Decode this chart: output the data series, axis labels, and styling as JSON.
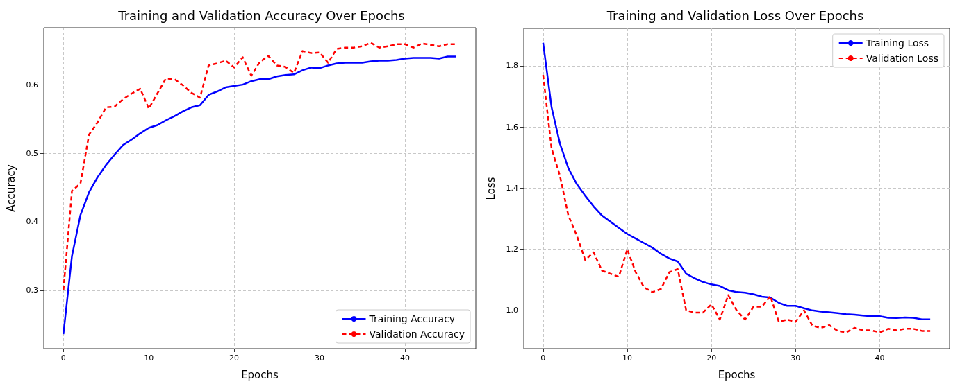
{
  "chart_data": [
    {
      "type": "line",
      "title": "Training and Validation Accuracy Over Epochs",
      "xlabel": "Epochs",
      "ylabel": "Accuracy",
      "x": [
        0,
        1,
        2,
        3,
        4,
        5,
        6,
        7,
        8,
        9,
        10,
        11,
        12,
        13,
        14,
        15,
        16,
        17,
        18,
        19,
        20,
        21,
        22,
        23,
        24,
        25,
        26,
        27,
        28,
        29,
        30,
        31,
        32,
        33,
        34,
        35,
        36,
        37,
        38,
        39,
        40,
        41,
        42,
        43,
        44,
        45,
        46
      ],
      "series": [
        {
          "name": "Training Accuracy",
          "color": "#0000ff",
          "line_style": "solid",
          "values": [
            0.236,
            0.35,
            0.41,
            0.443,
            0.465,
            0.483,
            0.498,
            0.512,
            0.52,
            0.529,
            0.537,
            0.541,
            0.548,
            0.554,
            0.561,
            0.567,
            0.57,
            0.585,
            0.59,
            0.596,
            0.598,
            0.6,
            0.605,
            0.608,
            0.608,
            0.612,
            0.614,
            0.615,
            0.621,
            0.625,
            0.624,
            0.628,
            0.631,
            0.632,
            0.632,
            0.632,
            0.634,
            0.635,
            0.635,
            0.636,
            0.638,
            0.639,
            0.639,
            0.639,
            0.638,
            0.641,
            0.641
          ]
        },
        {
          "name": "Validation Accuracy",
          "color": "#ff0000",
          "line_style": "dashed",
          "values": [
            0.3,
            0.445,
            0.456,
            0.527,
            0.545,
            0.567,
            0.568,
            0.579,
            0.587,
            0.594,
            0.565,
            0.587,
            0.609,
            0.608,
            0.599,
            0.588,
            0.581,
            0.628,
            0.631,
            0.635,
            0.625,
            0.64,
            0.613,
            0.633,
            0.642,
            0.628,
            0.626,
            0.617,
            0.649,
            0.646,
            0.647,
            0.632,
            0.652,
            0.654,
            0.654,
            0.656,
            0.661,
            0.654,
            0.656,
            0.659,
            0.659,
            0.654,
            0.66,
            0.658,
            0.656,
            0.659,
            0.659
          ]
        }
      ],
      "xlim": [
        -2.3,
        48.3
      ],
      "xticks": [
        0,
        10,
        20,
        30,
        40
      ],
      "ylim": [
        0.215,
        0.683
      ],
      "yticks": [
        0.3,
        0.4,
        0.5,
        0.6
      ],
      "grid": true,
      "legend": "bottom right"
    },
    {
      "type": "line",
      "title": "Training and Validation Loss Over Epochs",
      "xlabel": "Epochs",
      "ylabel": "Loss",
      "x": [
        0,
        1,
        2,
        3,
        4,
        5,
        6,
        7,
        8,
        9,
        10,
        11,
        12,
        13,
        14,
        15,
        16,
        17,
        18,
        19,
        20,
        21,
        22,
        23,
        24,
        25,
        26,
        27,
        28,
        29,
        30,
        31,
        32,
        33,
        34,
        35,
        36,
        37,
        38,
        39,
        40,
        41,
        42,
        43,
        44,
        45,
        46
      ],
      "series": [
        {
          "name": "Training Loss",
          "color": "#0000ff",
          "line_style": "solid",
          "values": [
            1.875,
            1.665,
            1.545,
            1.465,
            1.413,
            1.375,
            1.34,
            1.31,
            1.29,
            1.27,
            1.25,
            1.235,
            1.22,
            1.205,
            1.185,
            1.17,
            1.16,
            1.12,
            1.105,
            1.093,
            1.085,
            1.08,
            1.066,
            1.06,
            1.058,
            1.053,
            1.045,
            1.042,
            1.025,
            1.015,
            1.015,
            1.007,
            1.0,
            0.996,
            0.994,
            0.991,
            0.988,
            0.986,
            0.983,
            0.981,
            0.981,
            0.976,
            0.975,
            0.977,
            0.976,
            0.971,
            0.971
          ]
        },
        {
          "name": "Validation Loss",
          "color": "#ff0000",
          "line_style": "dashed",
          "values": [
            1.77,
            1.53,
            1.44,
            1.31,
            1.245,
            1.165,
            1.19,
            1.13,
            1.12,
            1.11,
            1.2,
            1.125,
            1.075,
            1.06,
            1.07,
            1.125,
            1.135,
            1.0,
            0.993,
            0.993,
            1.02,
            0.97,
            1.05,
            1.0,
            0.97,
            1.012,
            1.012,
            1.047,
            0.963,
            0.97,
            0.963,
            1.0,
            0.95,
            0.943,
            0.952,
            0.933,
            0.928,
            0.943,
            0.935,
            0.935,
            0.928,
            0.94,
            0.935,
            0.94,
            0.94,
            0.933,
            0.933
          ]
        }
      ],
      "xlim": [
        -2.3,
        48.3
      ],
      "xticks": [
        0,
        10,
        20,
        30,
        40
      ],
      "ylim": [
        0.875,
        1.922
      ],
      "yticks": [
        {
          "value": 1.0,
          "label": "1.0"
        },
        1.2,
        1.4,
        1.6,
        1.8
      ],
      "grid": true,
      "legend": "top right"
    }
  ]
}
